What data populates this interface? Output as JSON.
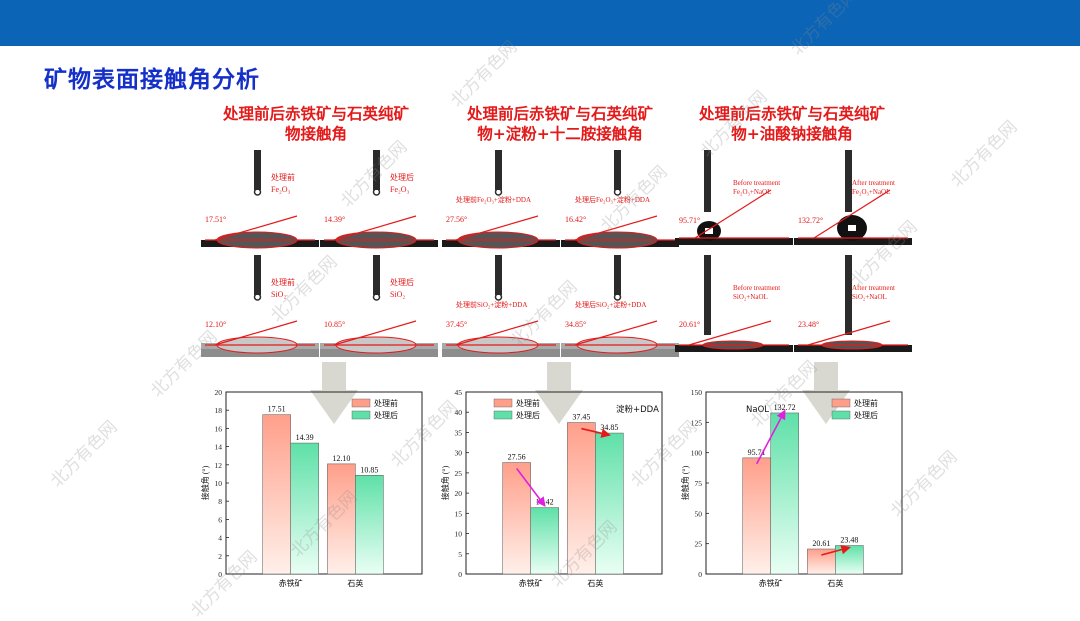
{
  "slide": {
    "title": "矿物表面接触角分析",
    "watermark": "北方有色网",
    "colors": {
      "bar": "#0b64b5",
      "title": "#1530c8",
      "heading": "#e41a1a",
      "before": "#ff9f8a",
      "after": "#5fe0a8",
      "arrow_red": "#e41a1a",
      "arrow_magenta": "#e020e0"
    }
  },
  "columns": [
    {
      "title_line1": "处理前后赤铁矿与石英纯矿",
      "title_line2": "物接触角",
      "photos": [
        {
          "label1": "处理前",
          "label2": "Fe₂O₃",
          "angle": "17.51°"
        },
        {
          "label1": "处理后",
          "label2": "Fe₂O₃",
          "angle": "14.39°"
        },
        {
          "label1": "处理前",
          "label2": "SiO₂",
          "angle": "12.10°"
        },
        {
          "label1": "处理后",
          "label2": "SiO₂",
          "angle": "10.85°"
        }
      ]
    },
    {
      "title_line1": "处理前后赤铁矿与石英纯矿",
      "title_line2": "物+淀粉+十二胺接触角",
      "photos": [
        {
          "label1": "处理前Fe₂O₃+淀粉+DDA",
          "label2": "",
          "angle": "27.56°"
        },
        {
          "label1": "处理后Fe₂O₃+淀粉+DDA",
          "label2": "",
          "angle": "16.42°"
        },
        {
          "label1": "处理前SiO₂+淀粉+DDA",
          "label2": "",
          "angle": "37.45°"
        },
        {
          "label1": "处理后SiO₂+淀粉+DDA",
          "label2": "",
          "angle": "34.85°"
        }
      ]
    },
    {
      "title_line1": "处理前后赤铁矿与石英纯矿",
      "title_line2": "物+油酸钠接触角",
      "photos": [
        {
          "label1": "Before treatment",
          "label2": "Fe₂O₃+NaOL",
          "angle": "95.71°"
        },
        {
          "label1": "After treatment",
          "label2": "Fe₂O₃+NaOL",
          "angle": "132.72°"
        },
        {
          "label1": "Before treatment",
          "label2": "SiO₂+NaOL",
          "angle": "20.61°"
        },
        {
          "label1": "After treatment",
          "label2": "SiO₂+NaOL",
          "angle": "23.48°"
        }
      ]
    }
  ],
  "chart_data": [
    {
      "type": "bar",
      "categories": [
        "赤铁矿",
        "石英"
      ],
      "series": [
        {
          "name": "处理前",
          "values": [
            17.51,
            12.1
          ]
        },
        {
          "name": "处理后",
          "values": [
            14.39,
            10.85
          ]
        }
      ],
      "value_labels": [
        [
          "17.51",
          "12.10"
        ],
        [
          "14.39",
          "10.85"
        ]
      ],
      "ylabel": "接触角 (°)",
      "ylim": [
        0,
        20
      ],
      "yticks": [
        "0",
        "2",
        "4",
        "6",
        "8",
        "10",
        "12",
        "14",
        "16",
        "18",
        "20"
      ],
      "annotation": "",
      "arrows": [],
      "legend": "top-right"
    },
    {
      "type": "bar",
      "categories": [
        "赤铁矿",
        "石英"
      ],
      "series": [
        {
          "name": "处理前",
          "values": [
            27.56,
            37.45
          ]
        },
        {
          "name": "处理后",
          "values": [
            16.42,
            34.85
          ]
        }
      ],
      "value_labels": [
        [
          "27.56",
          "37.45"
        ],
        [
          "16.42",
          "34.85"
        ]
      ],
      "ylabel": "接触角 (°)",
      "ylim": [
        0,
        45
      ],
      "yticks": [
        "0",
        "5",
        "10",
        "15",
        "20",
        "25",
        "30",
        "35",
        "40",
        "45"
      ],
      "annotation": "淀粉+DDA",
      "arrows": [
        {
          "cat": 0,
          "color": "magenta"
        },
        {
          "cat": 1,
          "color": "red"
        }
      ],
      "legend": "top-left"
    },
    {
      "type": "bar",
      "categories": [
        "赤铁矿",
        "石英"
      ],
      "series": [
        {
          "name": "处理前",
          "values": [
            95.71,
            20.61
          ]
        },
        {
          "name": "处理后",
          "values": [
            132.72,
            23.48
          ]
        }
      ],
      "value_labels": [
        [
          "95.71",
          "20.61"
        ],
        [
          "132.72",
          "23.48"
        ]
      ],
      "ylabel": "接触角 (°)",
      "ylim": [
        0,
        150
      ],
      "yticks": [
        "0",
        "25",
        "50",
        "75",
        "100",
        "125",
        "150"
      ],
      "annotation": "NaOL",
      "arrows": [
        {
          "cat": 0,
          "color": "magenta"
        },
        {
          "cat": 1,
          "color": "red"
        }
      ],
      "legend": "top-right"
    }
  ]
}
